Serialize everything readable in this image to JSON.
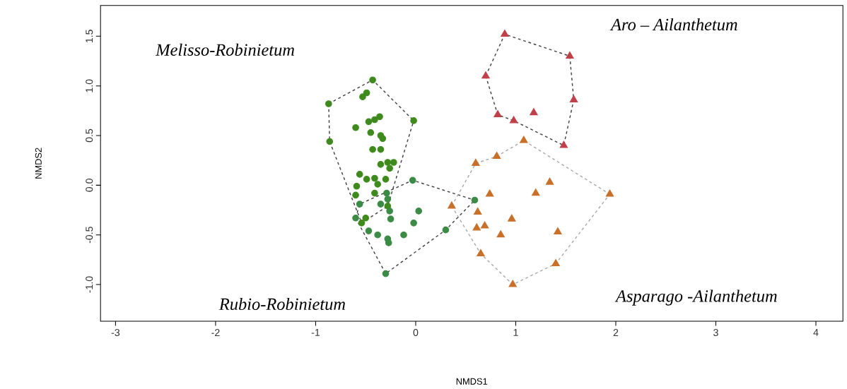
{
  "chart_data": {
    "type": "scatter",
    "xlabel": "NMDS1",
    "ylabel": "NMDS2",
    "xlim": [
      -3.15,
      4.27
    ],
    "ylim": [
      -1.37,
      1.81
    ],
    "xticks": [
      -3,
      -2,
      -1,
      0,
      1,
      2,
      3,
      4
    ],
    "yticks": [
      {
        "value": -1.0,
        "label": "-1.0"
      },
      {
        "value": -0.5,
        "label": "-0.5"
      },
      {
        "value": 0,
        "label": "0.0"
      },
      {
        "value": 0.5,
        "label": "0.5"
      },
      {
        "value": 1.0,
        "label": "1.0"
      },
      {
        "value": 1.5,
        "label": "1.5"
      }
    ],
    "series": [
      {
        "marker": "circle",
        "color": "#3f8a1c",
        "x": [
          -0.43,
          -0.53,
          -0.49,
          -0.87,
          -0.02,
          -0.36,
          -0.41,
          -0.47,
          -0.6,
          -0.45,
          -0.35,
          -0.33,
          -0.86,
          -0.43,
          -0.35,
          -0.35,
          -0.28,
          -0.22,
          -0.26,
          -0.56,
          -0.49,
          -0.41,
          -0.38,
          -0.3,
          -0.59,
          -0.6,
          -0.41,
          -0.28,
          -0.5,
          -0.54
        ],
        "values": [
          1.06,
          0.89,
          0.93,
          0.82,
          0.65,
          0.69,
          0.66,
          0.64,
          0.58,
          0.53,
          0.5,
          0.47,
          0.44,
          0.36,
          0.36,
          0.21,
          0.23,
          0.23,
          0.17,
          0.11,
          0.06,
          0.07,
          0.01,
          0.06,
          -0.01,
          -0.1,
          -0.08,
          -0.21,
          -0.33,
          -0.38
        ]
      },
      {
        "marker": "circle",
        "color": "#3b8a45",
        "x": [
          -0.03,
          -0.29,
          -0.56,
          -0.35,
          -0.28,
          -0.26,
          0.59,
          -0.25,
          0.03,
          -0.6,
          -0.02,
          -0.47,
          -0.38,
          -0.28,
          -0.27,
          -0.12,
          0.3,
          -0.3
        ],
        "values": [
          0.05,
          -0.08,
          -0.19,
          -0.19,
          -0.14,
          -0.26,
          -0.15,
          -0.34,
          -0.26,
          -0.33,
          -0.38,
          -0.46,
          -0.5,
          -0.54,
          -0.58,
          -0.5,
          -0.45,
          -0.89
        ]
      },
      {
        "marker": "triangle",
        "color": "#c0404a",
        "x": [
          0.89,
          1.54,
          0.7,
          1.58,
          0.82,
          0.98,
          1.18,
          1.48
        ],
        "values": [
          1.52,
          1.3,
          1.1,
          0.86,
          0.71,
          0.65,
          0.73,
          0.4
        ]
      },
      {
        "marker": "triangle",
        "color": "#c8702a",
        "x": [
          1.08,
          0.81,
          0.6,
          1.34,
          1.2,
          0.74,
          1.94,
          0.36,
          0.62,
          0.96,
          0.61,
          0.69,
          0.85,
          1.42,
          0.65,
          1.4,
          0.97
        ],
        "values": [
          0.45,
          0.29,
          0.22,
          0.03,
          -0.08,
          -0.09,
          -0.09,
          -0.21,
          -0.27,
          -0.34,
          -0.43,
          -0.41,
          -0.5,
          -0.47,
          -0.69,
          -0.79,
          -1.0
        ]
      },
      {
        "type": "line",
        "line_style": "dashed",
        "marker": "none",
        "color": "#404040",
        "x": [
          -0.87,
          -0.43,
          -0.02
        ],
        "values": [
          0.82,
          1.06,
          0.65
        ]
      },
      {
        "type": "line",
        "line_style": "dashed",
        "marker": "none",
        "color": "#404040",
        "x": [
          -0.87,
          -0.86,
          -0.54,
          -0.28,
          -0.02
        ],
        "values": [
          0.82,
          0.44,
          -0.38,
          -0.21,
          0.65
        ]
      },
      {
        "type": "line",
        "line_style": "dashed",
        "marker": "none",
        "color": "#404040",
        "x": [
          -0.6,
          -0.56,
          -0.03,
          0.59
        ],
        "values": [
          -0.33,
          -0.19,
          0.05,
          -0.15
        ]
      },
      {
        "type": "line",
        "line_style": "dashed",
        "marker": "none",
        "color": "#404040",
        "x": [
          -0.6,
          -0.3,
          0.3,
          0.59
        ],
        "values": [
          -0.33,
          -0.89,
          -0.45,
          -0.15
        ]
      },
      {
        "type": "line",
        "line_style": "dashed",
        "marker": "none",
        "color": "#404040",
        "x": [
          0.7,
          0.89,
          1.54,
          1.58
        ],
        "values": [
          1.1,
          1.52,
          1.3,
          0.86
        ]
      },
      {
        "type": "line",
        "line_style": "dashed",
        "marker": "none",
        "color": "#404040",
        "x": [
          0.7,
          0.82,
          0.98,
          1.48,
          1.58
        ],
        "values": [
          1.1,
          0.71,
          0.65,
          0.4,
          0.86
        ]
      },
      {
        "type": "line",
        "line_style": "dashed",
        "marker": "none",
        "color": "#a8a8a8",
        "x": [
          0.36,
          0.6,
          0.81,
          1.08,
          1.94
        ],
        "values": [
          -0.21,
          0.22,
          0.29,
          0.45,
          -0.09
        ]
      },
      {
        "type": "line",
        "line_style": "dashed",
        "marker": "none",
        "color": "#a8a8a8",
        "x": [
          0.36,
          0.65,
          0.97,
          1.4,
          1.94
        ],
        "values": [
          -0.21,
          -0.69,
          -1.0,
          -0.79,
          -0.09
        ]
      }
    ],
    "annotations": [
      "Melisso-Robinietum",
      "Aro – Ailanthetum",
      "Rubio-Robinietum",
      "Asparago -Ailanthetum"
    ]
  }
}
